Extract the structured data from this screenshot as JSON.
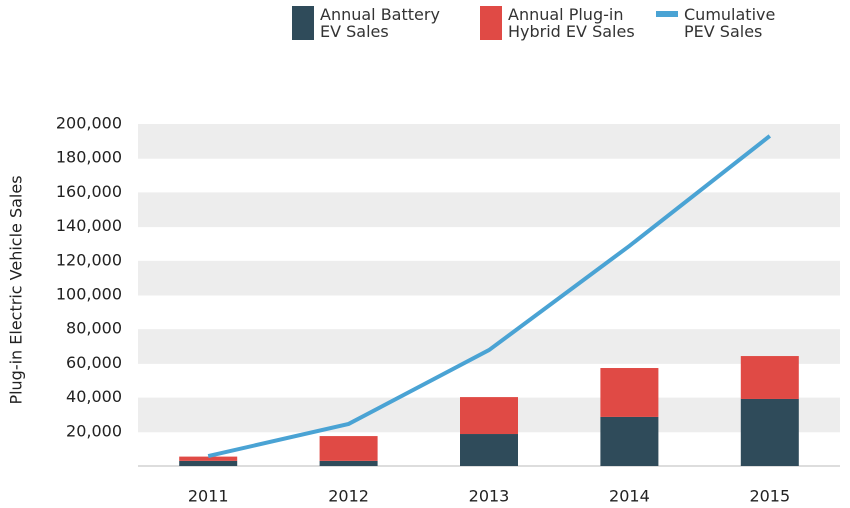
{
  "chart_data": {
    "type": "bar",
    "y_label": "Plug-in Electric Vehicle Sales",
    "categories": [
      "2011",
      "2012",
      "2013",
      "2014",
      "2015"
    ],
    "series": [
      {
        "name": "Annual Battery EV Sales",
        "type": "bar",
        "color": "#2f4b5a",
        "values": [
          3000,
          3000,
          18700,
          28700,
          39200
        ]
      },
      {
        "name": "Annual Plug-in Hybrid EV Sales",
        "type": "bar",
        "color": "#e04a45",
        "values": [
          2500,
          14500,
          21600,
          28600,
          25100
        ]
      },
      {
        "name": "Cumulative PEV Sales",
        "type": "line",
        "color": "#4aa3d4",
        "values": [
          5800,
          24600,
          67800,
          128700,
          193000
        ]
      }
    ],
    "stacked": true,
    "ylim": [
      0,
      200000
    ],
    "yticks": [
      {
        "value": 20000,
        "label": "20,000"
      },
      {
        "value": 40000,
        "label": "40,000"
      },
      {
        "value": 60000,
        "label": "60,000"
      },
      {
        "value": 80000,
        "label": "80,000"
      },
      {
        "value": 100000,
        "label": "100,000"
      },
      {
        "value": 120000,
        "label": "120,000"
      },
      {
        "value": 140000,
        "label": "140,000"
      },
      {
        "value": 160000,
        "label": "160,000"
      },
      {
        "value": 180000,
        "label": "180,000"
      },
      {
        "value": 200000,
        "label": "200,000"
      }
    ],
    "grid": true,
    "legend": "top"
  }
}
